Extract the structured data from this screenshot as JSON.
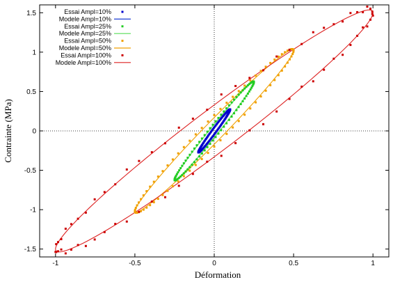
{
  "chart_data": {
    "type": "scatter",
    "title": "",
    "xlabel": "Déformation",
    "ylabel": "Contrainte (MPa)",
    "xlim": [
      -1.1,
      1.1
    ],
    "ylim": [
      -1.6,
      1.6
    ],
    "xticks": [
      -1,
      -0.5,
      0,
      0.5,
      1
    ],
    "yticks": [
      -1.5,
      -1,
      -0.5,
      0,
      0.5,
      1,
      1.5
    ],
    "xtick_labels": [
      "-1",
      "-0.5",
      "0",
      "0.5",
      "1"
    ],
    "ytick_labels": [
      "-1.5",
      "-1",
      "-0.5",
      "0",
      "0.5",
      "1",
      "1.5"
    ],
    "zero_lines": true,
    "legend_position": "top-left",
    "series": [
      {
        "name": "Essai Ampl=10%",
        "kind": "points",
        "color": "#0000cc",
        "amplitude": 0.1,
        "peak_stress": 0.27,
        "width": 0.045
      },
      {
        "name": "Modele Ampl=10%",
        "kind": "line",
        "color": "#1f3fd6",
        "amplitude": 0.1,
        "peak_stress": 0.27,
        "width": 0.035
      },
      {
        "name": "Essai Ampl=25%",
        "kind": "points",
        "color": "#22cc22",
        "amplitude": 0.25,
        "peak_stress": 0.62,
        "width": 0.1
      },
      {
        "name": "Modele Ampl=25%",
        "kind": "line",
        "color": "#55dd55",
        "amplitude": 0.25,
        "peak_stress": 0.62,
        "width": 0.085
      },
      {
        "name": "Essai Ampl=50%",
        "kind": "points",
        "color": "#f0a000",
        "amplitude": 0.5,
        "peak_stress": 1.02,
        "width": 0.2
      },
      {
        "name": "Modele Ampl=50%",
        "kind": "line",
        "color": "#f0a000",
        "amplitude": 0.5,
        "peak_stress": 1.02,
        "width": 0.17
      },
      {
        "name": "Essai Ampl=100%",
        "kind": "points",
        "color": "#cc0000",
        "amplitude": 1.0,
        "peak_stress": 1.5,
        "width": 0.36
      },
      {
        "name": "Modele Ampl=100%",
        "kind": "line",
        "color": "#dd2222",
        "amplitude": 1.0,
        "peak_stress": 1.5,
        "width": 0.33
      }
    ]
  }
}
